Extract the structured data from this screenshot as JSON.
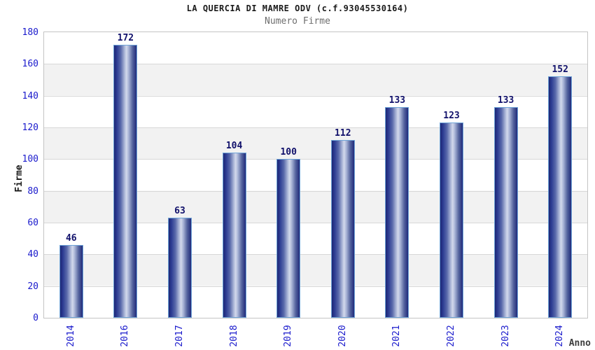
{
  "header": {
    "title": "LA QUERCIA DI MAMRE ODV (c.f.93045530164)",
    "subtitle": "Numero Firme"
  },
  "chart_data": {
    "type": "bar",
    "title": "LA QUERCIA DI MAMRE ODV (c.f.93045530164)",
    "subtitle": "Numero Firme",
    "categories": [
      "2014",
      "2016",
      "2017",
      "2018",
      "2019",
      "2020",
      "2021",
      "2022",
      "2023",
      "2024"
    ],
    "values": [
      46,
      172,
      63,
      104,
      100,
      112,
      133,
      123,
      133,
      152
    ],
    "xlabel": "Anno",
    "ylabel": "Firme",
    "ylim": [
      0,
      180
    ],
    "ytick_step": 20,
    "yticks": [
      0,
      20,
      40,
      60,
      80,
      100,
      120,
      140,
      160,
      180
    ],
    "grid": true,
    "legend": false,
    "band_colors": [
      "#ffffff",
      "#f2f2f2"
    ]
  },
  "colors": {
    "tick_label": "#1a1acc",
    "value_label": "#11116b",
    "bar_border": "#6fa4d8",
    "bar_dark": "#1d2775",
    "bar_highlight": "#d3d9ec",
    "plot_border": "#c4c4c4",
    "gridline": "#d8d8d8",
    "band_gray": "#f2f2f2",
    "title": "#1a1a1a",
    "subtitle": "#6e6e6e",
    "axis_label": "#3d3d3d"
  }
}
